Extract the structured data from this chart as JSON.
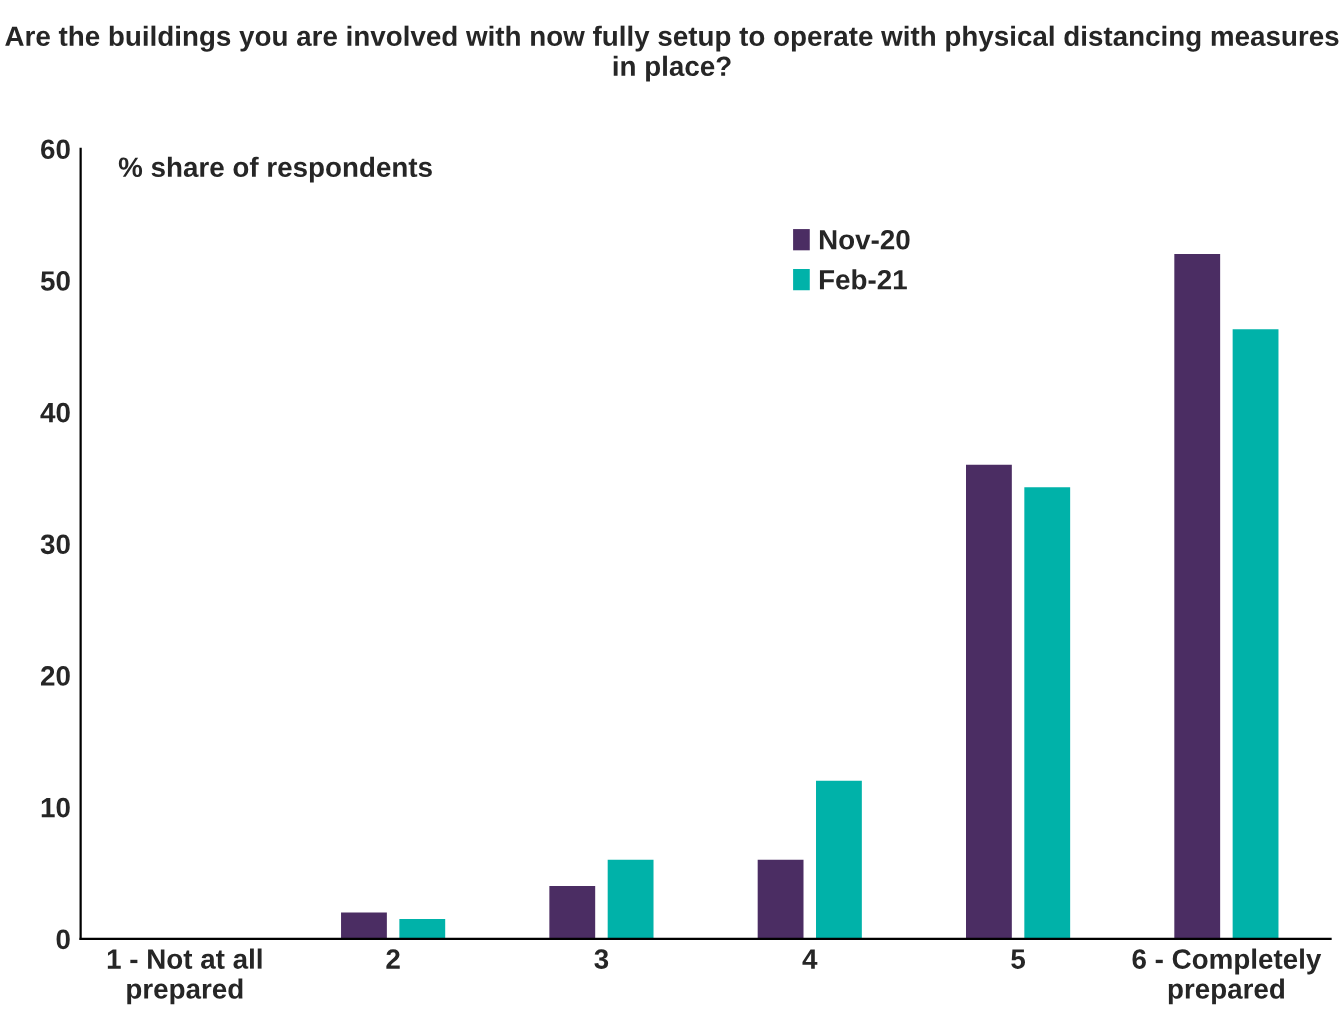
{
  "chart_data": {
    "type": "bar",
    "title": "Are the buildings you are involved with now fully setup to operate with physical distancing measures in place?",
    "ylabel": "% share of respondents",
    "categories": [
      "1 - Not at all\nprepared",
      "2",
      "3",
      "4",
      "5",
      "6 - Completely\nprepared"
    ],
    "series": [
      {
        "name": "Nov-20",
        "color": "#4b2d63",
        "values": [
          0,
          2,
          4,
          6,
          36,
          52
        ]
      },
      {
        "name": "Feb-21",
        "color": "#00b2a9",
        "values": [
          0,
          1.5,
          6,
          12,
          34.3,
          46.3
        ]
      }
    ],
    "ylim": [
      0,
      60
    ],
    "yticks": [
      0,
      10,
      20,
      30,
      40,
      50,
      60
    ],
    "grid": false,
    "legend": "top"
  }
}
